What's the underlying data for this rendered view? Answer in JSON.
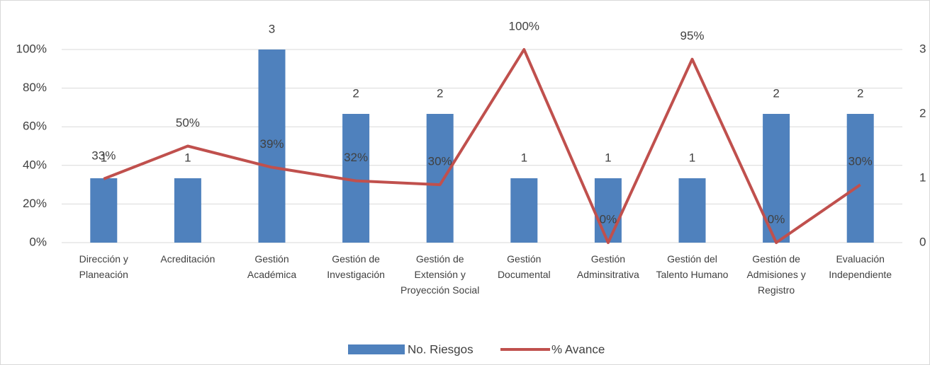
{
  "chart_data": {
    "type": "bar_line",
    "categories": [
      "Dirección y Planeación",
      "Acreditación",
      "Gestión Académica",
      "Gestión de Investigación",
      "Gestión de Extensión y Proyección Social",
      "Gestión Documental",
      "Gestión Adminsitrativa",
      "Gestión del Talento Humano",
      "Gestión de Admisiones y Registro",
      "Evaluación Independiente"
    ],
    "series": [
      {
        "name": "No. Riesgos",
        "type": "bar",
        "axis": "y2",
        "color": "#4f81bd",
        "values": [
          1,
          1,
          3,
          2,
          2,
          1,
          1,
          1,
          2,
          2
        ]
      },
      {
        "name": "% Avance",
        "type": "line",
        "color": "#c0504d",
        "values": [
          33,
          50,
          39,
          32,
          30,
          100,
          0,
          95,
          0,
          30
        ],
        "value_labels": [
          "33%",
          "50%",
          "39%",
          "32%",
          "30%",
          "100%",
          "0%",
          "95%",
          "0%",
          "30%"
        ]
      }
    ],
    "ylim": [
      0,
      100
    ],
    "yticks": [
      {
        "value": 0,
        "label": "0%"
      },
      {
        "value": 20,
        "label": "20%"
      },
      {
        "value": 40,
        "label": "40%"
      },
      {
        "value": 60,
        "label": "60%"
      },
      {
        "value": 80,
        "label": "80%"
      },
      {
        "value": 100,
        "label": "100%"
      }
    ],
    "y2lim": [
      0,
      3
    ],
    "y2ticks": [
      0,
      1,
      2,
      3
    ],
    "grid": true,
    "legend": "bottom"
  }
}
